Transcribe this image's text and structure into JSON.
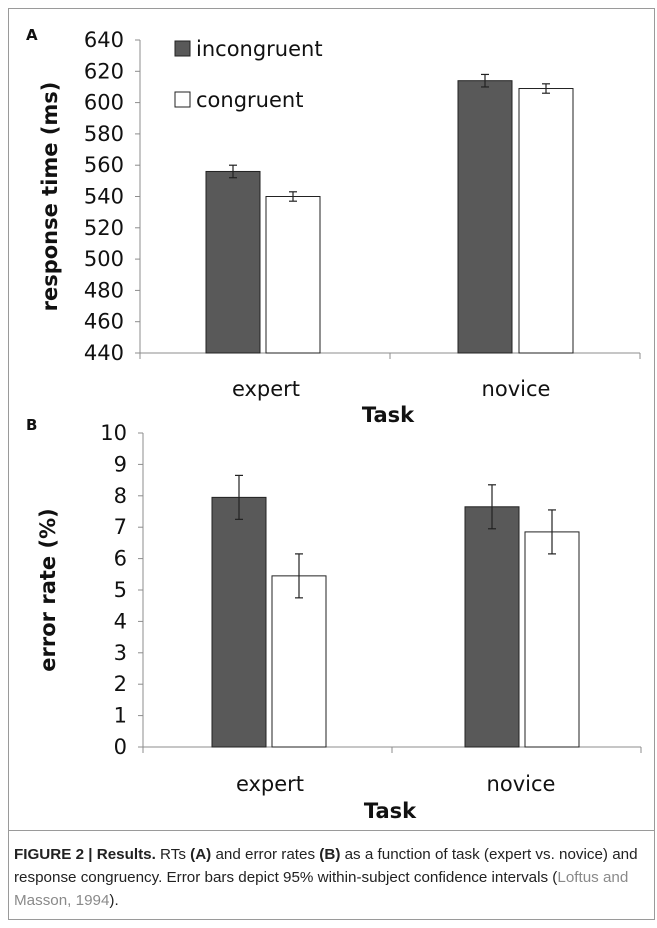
{
  "chart_data": [
    {
      "type": "bar",
      "panel_label": "A",
      "categories": [
        "expert",
        "novice"
      ],
      "series": [
        {
          "name": "incongruent",
          "values": [
            556,
            614
          ],
          "error": [
            4,
            4
          ],
          "color": "#595959"
        },
        {
          "name": "congruent",
          "values": [
            540,
            609
          ],
          "error": [
            3,
            3
          ],
          "color": "#ffffff"
        }
      ],
      "xlabel": "Task",
      "ylabel": "response time (ms)",
      "ylim": [
        440,
        640
      ],
      "yticks": [
        "440",
        "460",
        "480",
        "500",
        "520",
        "540",
        "560",
        "580",
        "600",
        "620",
        "640"
      ],
      "legend_position": "top-left",
      "grid": false
    },
    {
      "type": "bar",
      "panel_label": "B",
      "categories": [
        "expert",
        "novice"
      ],
      "series": [
        {
          "name": "incongruent",
          "values": [
            7.95,
            7.65
          ],
          "error": [
            0.7,
            0.7
          ],
          "color": "#595959"
        },
        {
          "name": "congruent",
          "values": [
            5.45,
            6.85
          ],
          "error": [
            0.7,
            0.7
          ],
          "color": "#ffffff"
        }
      ],
      "xlabel": "Task",
      "ylabel": "error rate (%)",
      "ylim": [
        0,
        10
      ],
      "yticks": [
        "0",
        "1",
        "2",
        "3",
        "4",
        "5",
        "6",
        "7",
        "8",
        "9",
        "10"
      ],
      "grid": false
    }
  ],
  "caption": {
    "lead": "FIGURE 2 | Results.",
    "text_1": " RTs ",
    "ref_a": "(A)",
    "text_2": " and error rates ",
    "ref_b": "(B)",
    "text_3": " as a function of task (expert vs. novice) and response congruency. Error bars depict 95% within-subject confidence intervals (",
    "citation": "Loftus and Masson, 1994",
    "text_4": ")."
  }
}
